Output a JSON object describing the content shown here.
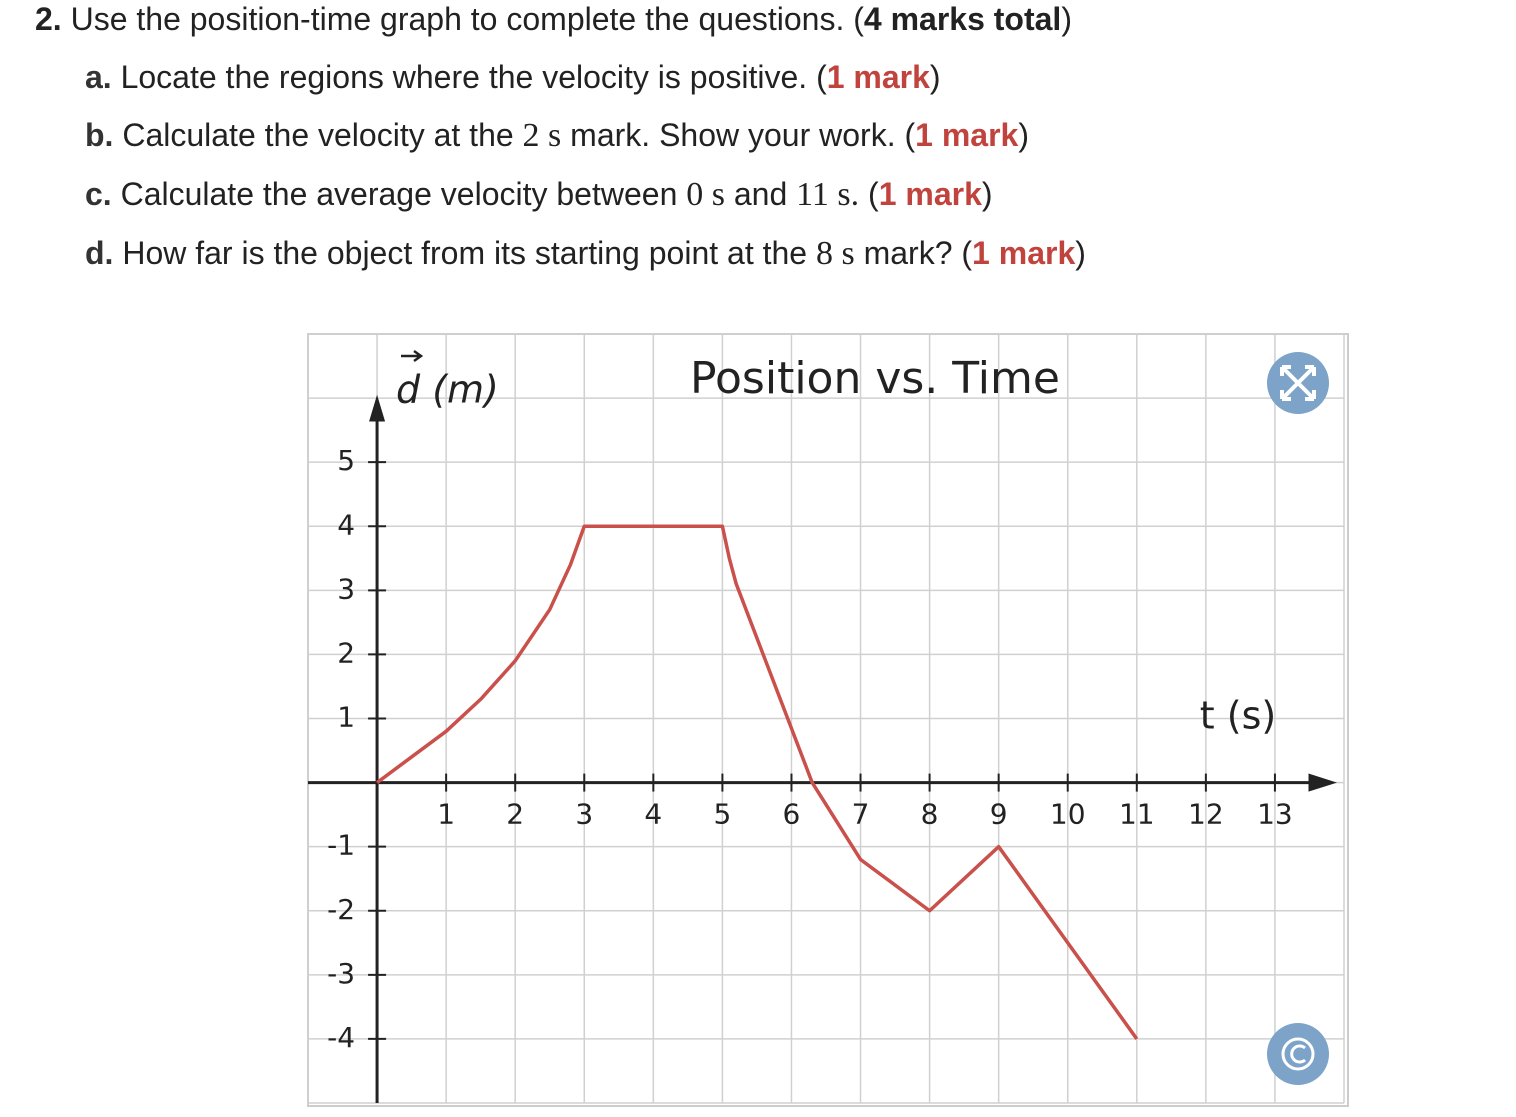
{
  "question": {
    "lines": [
      [
        {
          "text": "2.",
          "style": "bold"
        },
        {
          "text": " Use the position-time graph to complete the questions. (",
          "style": "plain"
        },
        {
          "text": "4 marks total",
          "style": "bold"
        },
        {
          "text": ")",
          "style": "plain"
        }
      ],
      [
        {
          "text": "a.",
          "style": "label"
        },
        {
          "text": " Locate the regions where the velocity is positive. (",
          "style": "plain"
        },
        {
          "text": "1 mark",
          "style": "red"
        },
        {
          "text": ")",
          "style": "plain"
        }
      ],
      [
        {
          "text": "b.",
          "style": "label"
        },
        {
          "text": " Calculate the velocity at the ",
          "style": "plain"
        },
        {
          "text": "2 s",
          "style": "math"
        },
        {
          "text": " mark. Show your work. (",
          "style": "plain"
        },
        {
          "text": "1 mark",
          "style": "red"
        },
        {
          "text": ")",
          "style": "plain"
        }
      ],
      [
        {
          "text": "c.",
          "style": "label"
        },
        {
          "text": " Calculate the average velocity between ",
          "style": "plain"
        },
        {
          "text": "0 s",
          "style": "math"
        },
        {
          "text": " and ",
          "style": "plain"
        },
        {
          "text": "11 s.",
          "style": "math"
        },
        {
          "text": " (",
          "style": "plain"
        },
        {
          "text": "1 mark",
          "style": "red"
        },
        {
          "text": ")",
          "style": "plain"
        }
      ],
      [
        {
          "text": "d.",
          "style": "label"
        },
        {
          "text": " How far is the object from its starting point at the ",
          "style": "plain"
        },
        {
          "text": "8 s",
          "style": "math"
        },
        {
          "text": " mark? (",
          "style": "plain"
        },
        {
          "text": "1 mark",
          "style": "red"
        },
        {
          "text": ")",
          "style": "plain"
        }
      ]
    ]
  },
  "chart_data": {
    "type": "line",
    "title": "Position vs. Time",
    "x_label": "t (s)",
    "y_label": "d (m)",
    "x": [
      0,
      0.5,
      1,
      1.5,
      2,
      2.5,
      2.8,
      3,
      4,
      5,
      5.1,
      5.2,
      6.3,
      7,
      8,
      9,
      11
    ],
    "y": [
      0,
      0.4,
      0.8,
      1.3,
      1.9,
      2.7,
      3.4,
      4,
      4,
      4,
      3.5,
      3.1,
      0,
      -1.2,
      -2,
      -1,
      -4
    ],
    "color": "#c9504b",
    "xlim": [
      -1,
      14
    ],
    "ylim": [
      -5,
      7
    ],
    "xticks": [
      1,
      2,
      3,
      4,
      5,
      6,
      7,
      8,
      9,
      10,
      11,
      12,
      13
    ],
    "yticks": [
      5,
      4,
      3,
      2,
      1,
      -1,
      -2,
      -3,
      -4
    ],
    "grid": true
  }
}
